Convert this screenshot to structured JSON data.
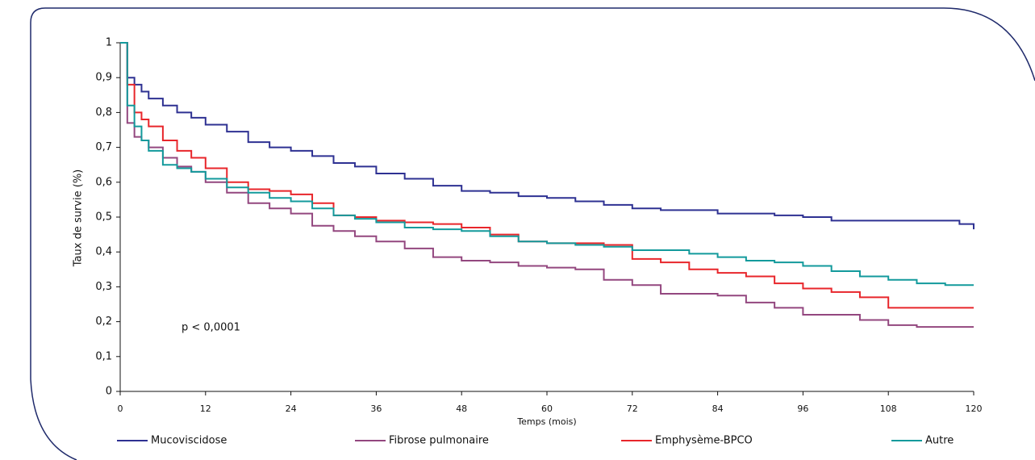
{
  "chart_data": {
    "type": "line",
    "step": true,
    "xlabel": "Temps (mois)",
    "ylabel": "Taux de survie (%)",
    "annotation": "p < 0,0001",
    "x": [
      0,
      1,
      2,
      3,
      4,
      6,
      8,
      10,
      12,
      15,
      18,
      21,
      24,
      27,
      30,
      33,
      36,
      40,
      44,
      48,
      52,
      56,
      60,
      64,
      68,
      72,
      76,
      80,
      84,
      88,
      92,
      96,
      100,
      104,
      108,
      112,
      116,
      118,
      120
    ],
    "series": [
      {
        "name": "Mucoviscidose",
        "color": "#2e3192",
        "values": [
          1,
          0.9,
          0.88,
          0.86,
          0.84,
          0.82,
          0.8,
          0.785,
          0.765,
          0.745,
          0.715,
          0.7,
          0.69,
          0.675,
          0.655,
          0.645,
          0.625,
          0.61,
          0.59,
          0.575,
          0.57,
          0.56,
          0.555,
          0.545,
          0.535,
          0.525,
          0.52,
          0.52,
          0.51,
          0.51,
          0.505,
          0.5,
          0.49,
          0.49,
          0.49,
          0.49,
          0.49,
          0.48,
          0.465
        ]
      },
      {
        "name": "Fibrose pulmonaire",
        "color": "#93477f",
        "values": [
          1,
          0.77,
          0.73,
          0.72,
          0.7,
          0.67,
          0.645,
          0.63,
          0.6,
          0.57,
          0.54,
          0.525,
          0.51,
          0.475,
          0.46,
          0.445,
          0.43,
          0.41,
          0.385,
          0.375,
          0.37,
          0.36,
          0.355,
          0.35,
          0.32,
          0.305,
          0.28,
          0.28,
          0.275,
          0.255,
          0.24,
          0.22,
          0.22,
          0.205,
          0.19,
          0.185,
          0.185,
          0.185,
          0.185
        ]
      },
      {
        "name": "Emphysème-BPCO",
        "color": "#e8262b",
        "values": [
          1,
          0.88,
          0.8,
          0.78,
          0.76,
          0.72,
          0.69,
          0.67,
          0.64,
          0.6,
          0.58,
          0.575,
          0.565,
          0.54,
          0.505,
          0.5,
          0.49,
          0.485,
          0.48,
          0.47,
          0.45,
          0.43,
          0.425,
          0.425,
          0.42,
          0.38,
          0.37,
          0.35,
          0.34,
          0.33,
          0.31,
          0.295,
          0.285,
          0.27,
          0.24,
          0.24,
          0.24,
          0.24,
          0.24
        ]
      },
      {
        "name": "Autre",
        "color": "#139a9c",
        "values": [
          1,
          0.82,
          0.76,
          0.72,
          0.69,
          0.65,
          0.64,
          0.63,
          0.61,
          0.585,
          0.57,
          0.555,
          0.545,
          0.525,
          0.505,
          0.495,
          0.485,
          0.47,
          0.465,
          0.46,
          0.445,
          0.43,
          0.425,
          0.42,
          0.415,
          0.405,
          0.405,
          0.395,
          0.385,
          0.375,
          0.37,
          0.36,
          0.345,
          0.33,
          0.32,
          0.31,
          0.305,
          0.305,
          0.305
        ]
      }
    ],
    "xlim": [
      0,
      120
    ],
    "xticks": [
      0,
      12,
      24,
      36,
      48,
      60,
      72,
      84,
      96,
      108,
      120
    ],
    "ylim": [
      0,
      1
    ],
    "yticks": [
      0,
      {
        "value": 0.1,
        "label": "0,1"
      },
      {
        "value": 0.2,
        "label": "0,2"
      },
      {
        "value": 0.3,
        "label": "0,3"
      },
      {
        "value": 0.4,
        "label": "0,4"
      },
      {
        "value": 0.5,
        "label": "0,5"
      },
      {
        "value": 0.6,
        "label": "0,6"
      },
      {
        "value": 0.7,
        "label": "0,7"
      },
      {
        "value": 0.8,
        "label": "0,8"
      },
      {
        "value": 0.9,
        "label": "0,9"
      },
      1
    ],
    "legend": "bottom"
  }
}
